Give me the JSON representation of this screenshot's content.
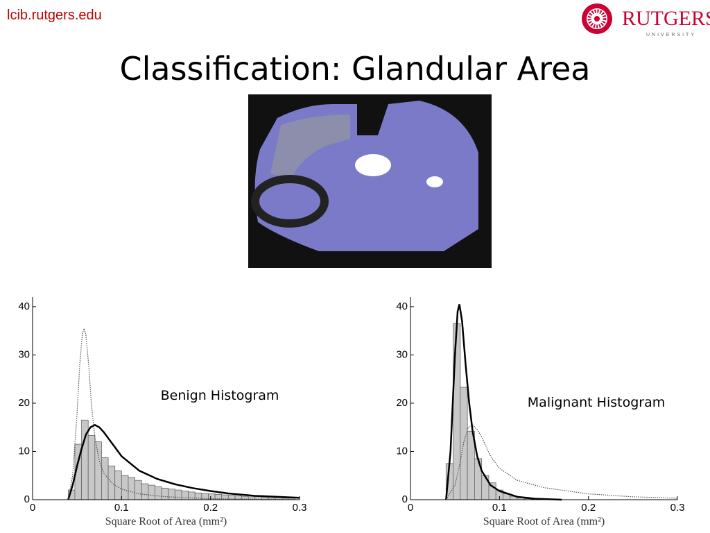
{
  "header": {
    "site": "lcib.rutgers.edu",
    "logo_name": "RUTGERS",
    "logo_sub": "UNIVERSITY"
  },
  "title": "Classification: Glandular Area",
  "chart_data": [
    {
      "type": "histogram",
      "annotation": "Benign Histogram",
      "xlabel": "Square Root of Area (mm²)",
      "bins": [
        0.04,
        0.0475,
        0.055,
        0.0625,
        0.07,
        0.0775,
        0.085,
        0.0925,
        0.1,
        0.1075,
        0.115,
        0.1225,
        0.13,
        0.1375,
        0.145,
        0.1525,
        0.16,
        0.1675,
        0.175,
        0.1825,
        0.19,
        0.1975,
        0.205,
        0.2125,
        0.22,
        0.2275,
        0.235,
        0.2425,
        0.25,
        0.2575,
        0.265,
        0.2725,
        0.28,
        0.2875,
        0.295
      ],
      "counts": [
        2,
        11.5,
        16.5,
        13.3,
        12,
        8.7,
        7,
        6,
        5,
        4.6,
        4,
        3.3,
        3,
        2.7,
        2.4,
        2.2,
        2,
        1.8,
        1.6,
        1.4,
        1.3,
        1.2,
        1.1,
        1,
        0.9,
        0.8,
        0.7,
        0.6,
        0.6,
        0.5,
        0.4,
        0.4,
        0.3,
        0.3
      ],
      "color": "#c8c8c8",
      "xlim": [
        0,
        0.3
      ],
      "xticks": [
        0,
        0.1,
        0.2,
        0.3
      ],
      "ylim": [
        0,
        42
      ],
      "yticks": [
        0,
        10,
        20,
        30,
        40
      ],
      "curves": [
        {
          "style": "solid",
          "color": "#000000",
          "x": [
            0.04,
            0.045,
            0.05,
            0.055,
            0.06,
            0.065,
            0.07,
            0.075,
            0.08,
            0.09,
            0.1,
            0.12,
            0.14,
            0.16,
            0.18,
            0.2,
            0.22,
            0.25,
            0.3
          ],
          "values": [
            0,
            3,
            7,
            10.5,
            13.5,
            15,
            15.5,
            15,
            14,
            11.5,
            9,
            6,
            4.3,
            3.2,
            2.4,
            1.8,
            1.3,
            0.8,
            0.4
          ]
        },
        {
          "style": "dotted",
          "color": "#555555",
          "x": [
            0.04,
            0.045,
            0.05,
            0.053,
            0.056,
            0.058,
            0.06,
            0.063,
            0.066,
            0.07,
            0.075,
            0.08,
            0.09,
            0.1,
            0.12,
            0.15,
            0.2,
            0.25,
            0.3
          ],
          "values": [
            0,
            5,
            18,
            28,
            34.5,
            35.5,
            34,
            28,
            20,
            13,
            8,
            5.5,
            3.3,
            2.2,
            1.2,
            0.6,
            0.2,
            0.1,
            0
          ]
        }
      ]
    },
    {
      "type": "histogram",
      "annotation": "Malignant Histogram",
      "xlabel": "Square Root of Area (mm²)",
      "bins": [
        0.04,
        0.048,
        0.056,
        0.064,
        0.072,
        0.08,
        0.088,
        0.096,
        0.104,
        0.112,
        0.12,
        0.128,
        0.136
      ],
      "counts": [
        7.5,
        36.5,
        23.3,
        14.2,
        8.5,
        5,
        3.5,
        2,
        1.2,
        0.7,
        0.4,
        0.2
      ],
      "color": "#c8c8c8",
      "xlim": [
        0,
        0.3
      ],
      "xticks": [
        0,
        0.1,
        0.2,
        0.3
      ],
      "ylim": [
        0,
        42
      ],
      "yticks": [
        0,
        10,
        20,
        30,
        40
      ],
      "curves": [
        {
          "style": "solid",
          "color": "#000000",
          "x": [
            0.04,
            0.045,
            0.05,
            0.053,
            0.055,
            0.058,
            0.062,
            0.066,
            0.07,
            0.075,
            0.08,
            0.09,
            0.1,
            0.12,
            0.14,
            0.17
          ],
          "values": [
            0,
            10,
            30,
            39,
            40.5,
            37,
            28,
            20,
            14,
            9,
            6,
            3,
            1.8,
            0.6,
            0.2,
            0
          ]
        },
        {
          "style": "dotted",
          "color": "#555555",
          "x": [
            0.04,
            0.05,
            0.055,
            0.06,
            0.065,
            0.07,
            0.075,
            0.08,
            0.09,
            0.1,
            0.12,
            0.15,
            0.2,
            0.25,
            0.3
          ],
          "values": [
            0,
            3,
            7,
            12,
            15,
            15.5,
            14.5,
            13,
            9,
            6.5,
            4,
            2.5,
            1.2,
            0.6,
            0.3
          ]
        }
      ]
    }
  ]
}
